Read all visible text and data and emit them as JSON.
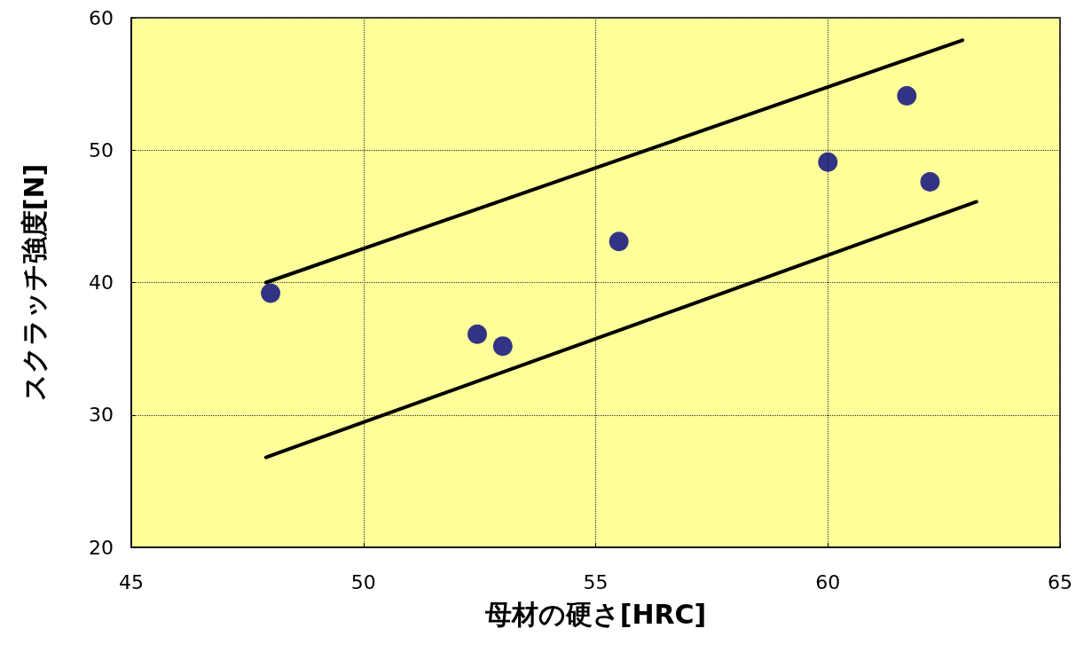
{
  "chart_data": {
    "type": "scatter",
    "xlabel": "母材の硬さ[HRC]",
    "ylabel": "スクラッチ強度[N]",
    "xlim": [
      45,
      65
    ],
    "xticks": [
      45,
      50,
      55,
      60,
      65
    ],
    "ylim": [
      20,
      60
    ],
    "yticks": [
      20,
      30,
      40,
      50,
      60
    ],
    "grid": true,
    "marker": "circle",
    "series": [
      {
        "color": "#000080",
        "x": [
          48.0,
          52.45,
          53.0,
          55.5,
          60.0,
          61.7,
          62.2
        ],
        "values": [
          39.2,
          36.1,
          35.2,
          43.1,
          49.1,
          54.1,
          47.6
        ]
      },
      {
        "type": "line",
        "color": "#000000",
        "marker": "none",
        "line_style": "solid",
        "x": [
          47.9,
          62.9
        ],
        "values": [
          40.0,
          58.3
        ]
      },
      {
        "type": "line",
        "color": "#000000",
        "marker": "none",
        "line_style": "solid",
        "x": [
          47.9,
          63.2
        ],
        "values": [
          26.8,
          46.1
        ]
      }
    ]
  }
}
